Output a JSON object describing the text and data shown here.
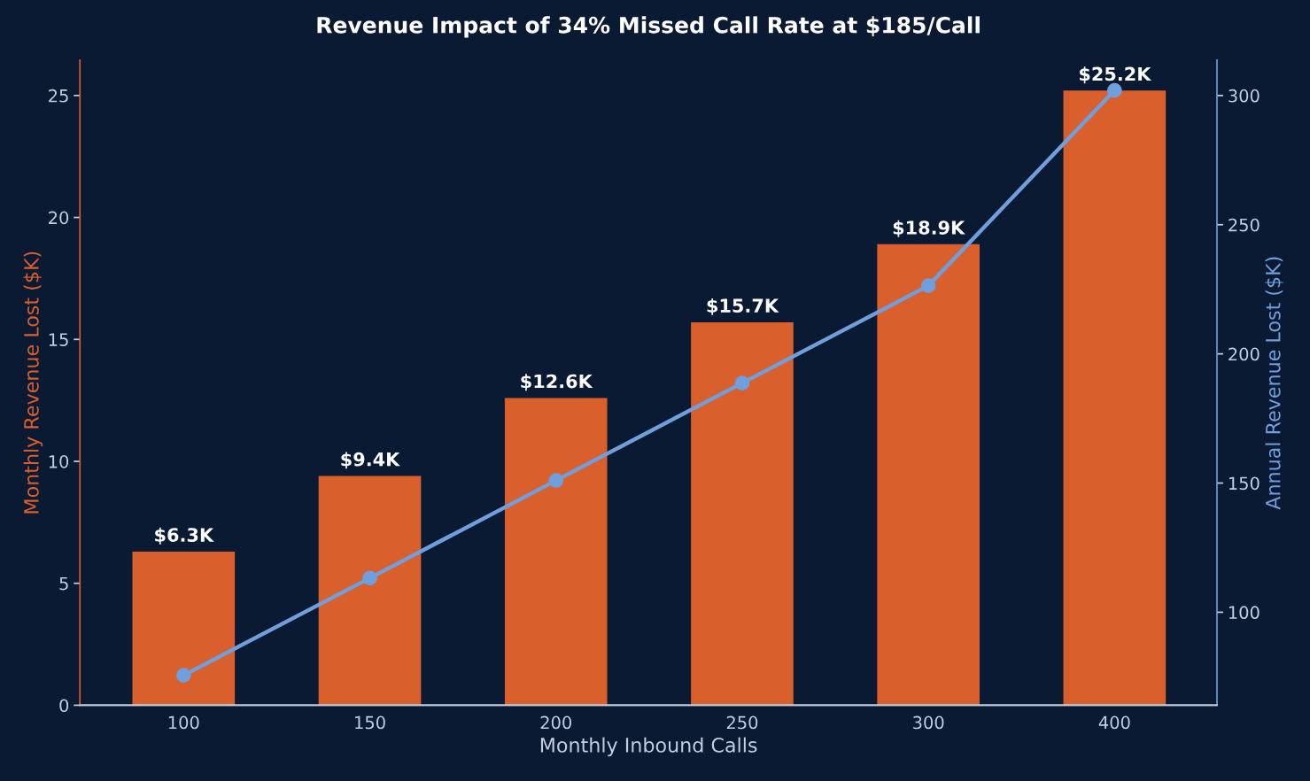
{
  "chart_data": {
    "type": "bar",
    "title": "Revenue Impact of 34% Missed Call Rate at $185/Call",
    "xlabel": "Monthly Inbound Calls",
    "ylabel": "Monthly Revenue Lost ($K)",
    "y2label": "Annual Revenue Lost ($K)",
    "categories": [
      "100",
      "150",
      "200",
      "250",
      "300",
      "400"
    ],
    "series": [
      {
        "color": "#d95f2d",
        "values": [
          6.3,
          9.4,
          12.6,
          15.7,
          18.9,
          25.2
        ],
        "value_labels": [
          "$6.3K",
          "$9.4K",
          "$12.6K",
          "$15.7K",
          "$18.9K",
          "$25.2K"
        ]
      },
      {
        "type": "line",
        "axis": "y2",
        "color": "#6f9fdc",
        "marker": "circle",
        "values": [
          75.6,
          113.2,
          151.0,
          188.7,
          226.4,
          302.0
        ]
      }
    ],
    "ylim": [
      0,
      26.45
    ],
    "yticks": [
      0,
      5,
      10,
      15,
      20,
      25
    ],
    "y2lim": [
      64,
      313.7
    ],
    "y2ticks": [
      100,
      150,
      200,
      250,
      300
    ]
  }
}
